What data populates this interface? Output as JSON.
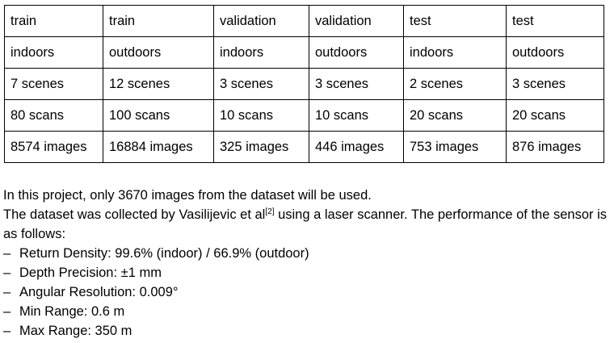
{
  "table": {
    "rows": [
      [
        "train",
        "train",
        "validation",
        "validation",
        "test",
        "test"
      ],
      [
        "indoors",
        "outdoors",
        "indoors",
        "outdoors",
        "indoors",
        "outdoors"
      ],
      [
        "7 scenes",
        "12 scenes",
        "3 scenes",
        "3 scenes",
        "2 scenes",
        "3 scenes"
      ],
      [
        "80 scans",
        "100 scans",
        "10 scans",
        "10 scans",
        "20 scans",
        "20 scans"
      ],
      [
        "8574 images",
        "16884 images",
        "325 images",
        "446 images",
        "753 images",
        "876 images"
      ]
    ]
  },
  "text": {
    "line1": "In this project, only 3670 images from the dataset will be used.",
    "line2_pre": "The dataset was collected by Vasilijevic et al",
    "line2_ref": "[2]",
    "line2_post": " using a laser scanner. The performance of the sensor is as follows:",
    "bullet_char": "–",
    "bullets": [
      "Return Density: 99.6% (indoor) / 66.9% (outdoor)",
      "Depth Precision: ±1 mm",
      "Angular Resolution: 0.009°",
      "Min Range: 0.6 m",
      "Max Range: 350 m"
    ]
  }
}
